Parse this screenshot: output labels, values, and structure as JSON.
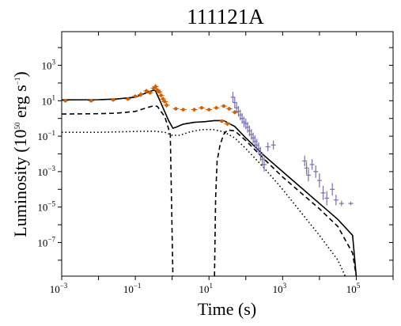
{
  "chart_data": {
    "type": "scatter",
    "title": "111121A",
    "xlabel": "Time (s)",
    "ylabel": "Luminosity (10",
    "ylabel_exp": "50",
    "ylabel_unit": " erg s",
    "ylabel_unit_exp": "−1",
    "ylabel_close": ")",
    "xscale": "log",
    "yscale": "log",
    "xlim_log": [
      -3,
      6
    ],
    "ylim_log": [
      -8.9,
      4.9
    ],
    "grid": false,
    "colors": {
      "orange": "#d55e00",
      "purple": "#7570b3",
      "black": "#000000"
    },
    "xticks": [
      {
        "base": "10",
        "exp": "−3",
        "log": -3
      },
      {
        "base": "10",
        "exp": "−1",
        "log": -1
      },
      {
        "base": "10",
        "exp": "1",
        "log": 1
      },
      {
        "base": "10",
        "exp": "3",
        "log": 3
      },
      {
        "base": "10",
        "exp": "5",
        "log": 5
      }
    ],
    "yticks": [
      {
        "base": "10",
        "exp": "−7",
        "log": -7
      },
      {
        "base": "10",
        "exp": "−5",
        "log": -5
      },
      {
        "base": "10",
        "exp": "−3",
        "log": -3
      },
      {
        "base": "10",
        "exp": "−1",
        "log": -1
      },
      {
        "base": "10",
        "exp": "1",
        "log": 1
      },
      {
        "base": "10",
        "exp": "3",
        "log": 3
      }
    ],
    "model_lines": [
      {
        "style": "solid",
        "points": [
          [
            -3,
            1.05
          ],
          [
            -2,
            1.06
          ],
          [
            -1.5,
            1.1
          ],
          [
            -1,
            1.2
          ],
          [
            -0.7,
            1.45
          ],
          [
            -0.5,
            1.6
          ],
          [
            -0.45,
            1.55
          ],
          [
            -0.3,
            0.85
          ],
          [
            -0.1,
            -0.1
          ],
          [
            0.02,
            -0.55
          ],
          [
            0.1,
            -0.5
          ],
          [
            0.3,
            -0.32
          ],
          [
            0.6,
            -0.22
          ],
          [
            0.9,
            -0.18
          ],
          [
            1.15,
            -0.12
          ],
          [
            1.4,
            -0.12
          ],
          [
            1.7,
            -0.45
          ],
          [
            2.0,
            -1.1
          ],
          [
            2.5,
            -2.1
          ],
          [
            3.0,
            -3.0
          ],
          [
            3.5,
            -3.9
          ],
          [
            4.0,
            -4.8
          ],
          [
            4.5,
            -5.7
          ],
          [
            4.9,
            -6.6
          ],
          [
            5.0,
            -8.9
          ]
        ]
      },
      {
        "style": "dashed",
        "points": [
          [
            -3,
            0.25
          ],
          [
            -2,
            0.27
          ],
          [
            -1.5,
            0.3
          ],
          [
            -1,
            0.4
          ],
          [
            -0.7,
            0.6
          ],
          [
            -0.5,
            0.72
          ],
          [
            -0.4,
            0.68
          ],
          [
            -0.2,
            0.1
          ],
          [
            -0.05,
            -0.9
          ],
          [
            0.02,
            -8.9
          ]
        ]
      },
      {
        "style": "dashed",
        "points": [
          [
            1.15,
            -8.9
          ],
          [
            1.18,
            -4.5
          ],
          [
            1.22,
            -2.4
          ],
          [
            1.3,
            -1.5
          ],
          [
            1.4,
            -0.9
          ],
          [
            1.5,
            -0.65
          ],
          [
            1.7,
            -0.7
          ],
          [
            2.0,
            -1.25
          ],
          [
            2.5,
            -2.3
          ],
          [
            3.0,
            -3.3
          ],
          [
            3.5,
            -4.2
          ],
          [
            4.0,
            -5.1
          ],
          [
            4.5,
            -6.1
          ],
          [
            4.9,
            -7.6
          ],
          [
            5.0,
            -8.9
          ]
        ]
      },
      {
        "style": "dotted",
        "points": [
          [
            -3,
            -0.78
          ],
          [
            -2,
            -0.78
          ],
          [
            -1.5,
            -0.76
          ],
          [
            -1,
            -0.73
          ],
          [
            -0.5,
            -0.72
          ],
          [
            -0.2,
            -0.78
          ],
          [
            0,
            -0.95
          ],
          [
            0.2,
            -0.95
          ],
          [
            0.5,
            -0.75
          ],
          [
            0.8,
            -0.63
          ],
          [
            1.1,
            -0.62
          ],
          [
            1.4,
            -0.75
          ],
          [
            1.7,
            -1.1
          ],
          [
            2.0,
            -1.7
          ],
          [
            2.5,
            -2.8
          ],
          [
            3.0,
            -4.0
          ],
          [
            3.5,
            -5.3
          ],
          [
            4.0,
            -6.6
          ],
          [
            4.5,
            -8.0
          ],
          [
            4.7,
            -8.9
          ]
        ]
      }
    ],
    "series_orange": [
      [
        -2.9,
        1.0,
        0.1
      ],
      [
        -2.2,
        1.0,
        0.08
      ],
      [
        -1.6,
        1.05,
        0.1
      ],
      [
        -1.2,
        1.1,
        0.08
      ],
      [
        -1.0,
        1.25,
        0.1
      ],
      [
        -0.85,
        1.35,
        0.15
      ],
      [
        -0.7,
        1.55,
        0.12
      ],
      [
        -0.6,
        1.45,
        0.1
      ],
      [
        -0.5,
        1.7,
        0.1
      ],
      [
        -0.45,
        1.8,
        0.15
      ],
      [
        -0.4,
        1.6,
        0.12
      ],
      [
        -0.35,
        1.5,
        0.1
      ],
      [
        -0.3,
        1.3,
        0.12
      ],
      [
        -0.25,
        1.1,
        0.12
      ],
      [
        -0.2,
        0.95,
        0.1
      ],
      [
        -0.15,
        0.75,
        0.15
      ],
      [
        0.1,
        0.55,
        0.1
      ],
      [
        0.3,
        0.5,
        0.08
      ],
      [
        0.6,
        0.5,
        0.1
      ],
      [
        0.8,
        0.6,
        0.1
      ],
      [
        1.0,
        0.5,
        0.08
      ],
      [
        1.2,
        0.6,
        0.1
      ],
      [
        1.4,
        0.7,
        0.1
      ],
      [
        1.55,
        0.55,
        0.1
      ],
      [
        1.7,
        0.35,
        0.12
      ],
      [
        1.35,
        -0.15,
        0.1
      ],
      [
        1.5,
        -0.3,
        0.12
      ]
    ],
    "series_purple": [
      [
        1.65,
        1.2,
        0.3
      ],
      [
        1.7,
        0.9,
        0.3
      ],
      [
        1.75,
        0.6,
        0.3
      ],
      [
        1.8,
        0.4,
        0.3
      ],
      [
        1.85,
        0.2,
        0.3
      ],
      [
        1.9,
        0.0,
        0.3
      ],
      [
        1.95,
        -0.2,
        0.3
      ],
      [
        2.0,
        -0.3,
        0.3
      ],
      [
        2.05,
        -0.5,
        0.3
      ],
      [
        2.1,
        -0.7,
        0.3
      ],
      [
        2.15,
        -0.9,
        0.3
      ],
      [
        2.2,
        -1.1,
        0.3
      ],
      [
        2.25,
        -1.3,
        0.35
      ],
      [
        2.3,
        -1.5,
        0.35
      ],
      [
        2.35,
        -1.7,
        0.35
      ],
      [
        2.4,
        -2.0,
        0.4
      ],
      [
        2.45,
        -2.3,
        0.4
      ],
      [
        2.5,
        -2.6,
        0.4
      ],
      [
        2.6,
        -1.6,
        0.25
      ],
      [
        2.75,
        -1.5,
        0.25
      ],
      [
        3.6,
        -2.4,
        0.3
      ],
      [
        3.65,
        -2.8,
        0.35
      ],
      [
        3.7,
        -3.2,
        0.35
      ],
      [
        3.8,
        -2.6,
        0.3
      ],
      [
        3.9,
        -3.0,
        0.35
      ],
      [
        4.0,
        -3.5,
        0.4
      ],
      [
        4.1,
        -4.2,
        0.4
      ],
      [
        4.2,
        -4.5,
        0.4
      ],
      [
        4.35,
        -4.0,
        0.35
      ],
      [
        4.45,
        -4.6,
        0.3
      ],
      [
        4.6,
        -4.8,
        0.15
      ],
      [
        4.85,
        -4.8,
        0.1
      ]
    ]
  }
}
